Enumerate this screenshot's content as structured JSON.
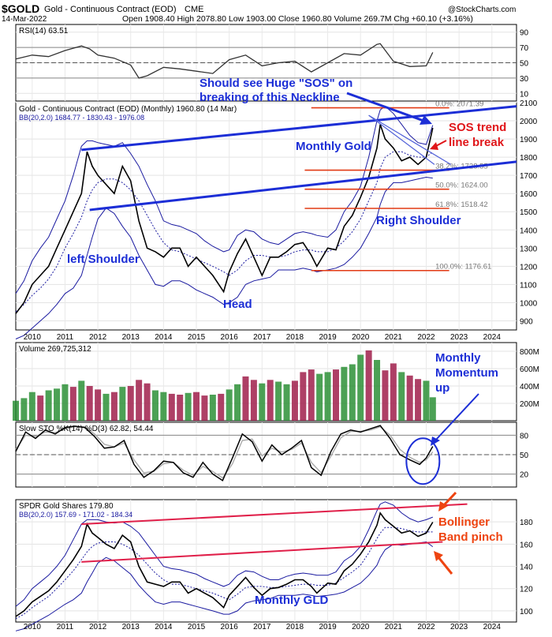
{
  "header": {
    "symbol": "$GOLD",
    "name": "Gold - Continuous Contract (EOD)",
    "exchange": "CME",
    "date": "14-Mar-2022",
    "quote": "Open 1908.40   High 2078.80   Low 1903.00   Close 1960.80   Volume 269.7M   Chg +60.10 (+3.16%)",
    "watermark": "@StockCharts.com"
  },
  "colors": {
    "price_line": "#000000",
    "bb_line": "#1a1aa0",
    "trend_blue": "#1c2ed6",
    "fib_red": "#e23a14",
    "annot_blue": "#1c2ed6",
    "annot_red": "#e0161a",
    "annot_orange": "#ee4411",
    "vol_up": "#1f8a2a",
    "vol_down": "#9a1040",
    "gld_trend": "#e0204a",
    "circle": "#1c2ed6"
  },
  "x_axis": {
    "ticks": [
      "2010",
      "2011",
      "2012",
      "2013",
      "2014",
      "2015",
      "2016",
      "2017",
      "2018",
      "2019",
      "2020",
      "2021",
      "2022",
      "2023",
      "2024"
    ]
  },
  "chart_data": [
    {
      "id": "rsi",
      "type": "line",
      "title": "RSI(14) 63.51",
      "x_range": [
        2009.5,
        2024.75
      ],
      "ylim": [
        0,
        100
      ],
      "y_ticks": [
        10,
        30,
        50,
        70,
        90
      ],
      "ref_levels": [
        70,
        30
      ],
      "x": [
        2009.5,
        2010,
        2010.5,
        2011,
        2011.5,
        2011.75,
        2012,
        2012.5,
        2013,
        2013.25,
        2013.5,
        2014,
        2014.5,
        2015,
        2015.5,
        2016,
        2016.5,
        2017,
        2017.5,
        2018,
        2018.5,
        2019,
        2019.5,
        2020,
        2020.5,
        2020.6,
        2021,
        2021.5,
        2022,
        2022.2
      ],
      "values": [
        55,
        60,
        58,
        66,
        72,
        68,
        60,
        56,
        47,
        30,
        33,
        44,
        42,
        39,
        36,
        54,
        60,
        46,
        50,
        52,
        38,
        50,
        62,
        60,
        74,
        75,
        52,
        45,
        46,
        63.5
      ]
    },
    {
      "id": "gold",
      "type": "line",
      "title": "Gold - Continuous Contract (EOD) (Monthly) 1960.80 (14 Mar)",
      "legend": "BB(20,2.0) 1684.77 - 1830.43 - 1976.08",
      "x_range": [
        2009.5,
        2024.75
      ],
      "ylim": [
        850,
        2100
      ],
      "y_ticks": [
        900,
        1000,
        1100,
        1200,
        1300,
        1400,
        1500,
        1600,
        1700,
        1800,
        1900,
        2000,
        2100
      ],
      "x": [
        2009.5,
        2009.75,
        2010,
        2010.25,
        2010.5,
        2010.75,
        2011,
        2011.25,
        2011.5,
        2011.67,
        2011.83,
        2012,
        2012.25,
        2012.5,
        2012.75,
        2013,
        2013.25,
        2013.5,
        2013.75,
        2014,
        2014.25,
        2014.5,
        2014.75,
        2015,
        2015.25,
        2015.5,
        2015.83,
        2016,
        2016.25,
        2016.5,
        2016.75,
        2017,
        2017.25,
        2017.5,
        2017.75,
        2018,
        2018.25,
        2018.5,
        2018.67,
        2019,
        2019.25,
        2019.5,
        2019.75,
        2020,
        2020.25,
        2020.5,
        2020.6,
        2020.75,
        2021,
        2021.25,
        2021.5,
        2021.75,
        2022,
        2022.2
      ],
      "values": [
        940,
        1000,
        1100,
        1150,
        1200,
        1300,
        1400,
        1500,
        1600,
        1830,
        1750,
        1700,
        1650,
        1600,
        1750,
        1670,
        1450,
        1300,
        1280,
        1250,
        1300,
        1300,
        1200,
        1250,
        1200,
        1150,
        1060,
        1170,
        1270,
        1350,
        1250,
        1150,
        1250,
        1250,
        1280,
        1320,
        1330,
        1260,
        1200,
        1300,
        1290,
        1420,
        1480,
        1580,
        1690,
        1850,
        1980,
        1900,
        1850,
        1780,
        1800,
        1760,
        1800,
        1960.8
      ],
      "bb_upper": [
        1050,
        1120,
        1230,
        1300,
        1360,
        1460,
        1560,
        1700,
        1860,
        1890,
        1890,
        1880,
        1870,
        1860,
        1880,
        1820,
        1750,
        1650,
        1560,
        1450,
        1430,
        1420,
        1400,
        1380,
        1340,
        1310,
        1280,
        1290,
        1370,
        1400,
        1390,
        1350,
        1330,
        1320,
        1350,
        1380,
        1390,
        1380,
        1370,
        1360,
        1400,
        1500,
        1560,
        1640,
        1800,
        2000,
        2060,
        2080,
        2040,
        1980,
        1920,
        1880,
        1870,
        1976
      ],
      "bb_lower": [
        800,
        820,
        860,
        900,
        940,
        990,
        1050,
        1080,
        1150,
        1260,
        1360,
        1460,
        1520,
        1490,
        1420,
        1360,
        1260,
        1180,
        1100,
        1090,
        1120,
        1120,
        1100,
        1070,
        1050,
        1030,
        990,
        1000,
        1030,
        1100,
        1120,
        1130,
        1140,
        1180,
        1180,
        1180,
        1190,
        1180,
        1170,
        1180,
        1190,
        1210,
        1250,
        1300,
        1380,
        1470,
        1540,
        1610,
        1660,
        1660,
        1670,
        1680,
        1690,
        1685
      ],
      "bb_mid": [
        950,
        990,
        1040,
        1080,
        1130,
        1200,
        1300,
        1380,
        1470,
        1560,
        1620,
        1660,
        1680,
        1680,
        1660,
        1620,
        1560,
        1480,
        1400,
        1330,
        1290,
        1280,
        1260,
        1240,
        1220,
        1200,
        1170,
        1150,
        1180,
        1230,
        1260,
        1260,
        1250,
        1250,
        1260,
        1280,
        1290,
        1290,
        1280,
        1280,
        1300,
        1340,
        1390,
        1460,
        1560,
        1660,
        1740,
        1800,
        1830,
        1830,
        1810,
        1800,
        1800,
        1830
      ],
      "trendlines": [
        {
          "from": [
            2011.5,
            1840
          ],
          "to": [
            2024.75,
            2080
          ]
        },
        {
          "from": [
            2011.75,
            1510
          ],
          "to": [
            2024.75,
            1775
          ]
        },
        {
          "from": [
            2020.25,
            2030
          ],
          "to": [
            2022.25,
            1760
          ]
        },
        {
          "from": [
            2020.25,
            2030
          ],
          "to": [
            2022.75,
            1760
          ]
        }
      ],
      "fib_lines": [
        {
          "label": "0.0%: 2071.39",
          "value": 2071.39,
          "from": 2018.5
        },
        {
          "label": "38.2%: 1728.55",
          "value": 1728.55,
          "from": 2018.3
        },
        {
          "label": "50.0%: 1624.00",
          "value": 1624.0,
          "from": 2018.3
        },
        {
          "label": "61.8%: 1518.42",
          "value": 1518.42,
          "from": 2018.3
        },
        {
          "label": "100.0%: 1176.61",
          "value": 1176.61,
          "from": 2018.5
        }
      ],
      "annotations": {
        "neckline": "Should see Huge \"SOS\" on breaking of this Neckline",
        "monthly_gold": "Monthly Gold",
        "sos_trend": "SOS trend line break",
        "right_shoulder": "Right Shoulder",
        "left_shoulder": "left Shoulder",
        "head": "Head"
      }
    },
    {
      "id": "volume",
      "type": "bar",
      "title": "Volume 269,725,312",
      "x_range": [
        2009.5,
        2024.75
      ],
      "ylim": [
        0,
        900
      ],
      "y_ticks": [
        200,
        400,
        600,
        800
      ],
      "y_tick_labels": [
        "200M",
        "400M",
        "600M",
        "800M"
      ],
      "x": [
        2009.5,
        2009.75,
        2010,
        2010.25,
        2010.5,
        2010.75,
        2011,
        2011.25,
        2011.5,
        2011.75,
        2012,
        2012.25,
        2012.5,
        2012.75,
        2013,
        2013.25,
        2013.5,
        2013.75,
        2014,
        2014.25,
        2014.5,
        2014.75,
        2015,
        2015.25,
        2015.5,
        2015.75,
        2016,
        2016.25,
        2016.5,
        2016.75,
        2017,
        2017.25,
        2017.5,
        2017.75,
        2018,
        2018.25,
        2018.5,
        2018.75,
        2019,
        2019.25,
        2019.5,
        2019.75,
        2020,
        2020.25,
        2020.5,
        2020.75,
        2021,
        2021.25,
        2021.5,
        2021.75,
        2022,
        2022.2
      ],
      "values": [
        230,
        260,
        330,
        290,
        350,
        370,
        420,
        390,
        460,
        400,
        360,
        310,
        330,
        390,
        400,
        470,
        430,
        350,
        330,
        310,
        300,
        320,
        330,
        290,
        300,
        310,
        360,
        420,
        510,
        470,
        430,
        470,
        450,
        420,
        460,
        560,
        590,
        540,
        560,
        590,
        620,
        650,
        760,
        810,
        700,
        580,
        660,
        560,
        520,
        480,
        460,
        270
      ],
      "direction": [
        1,
        1,
        1,
        0,
        1,
        1,
        1,
        0,
        1,
        0,
        0,
        1,
        0,
        1,
        0,
        0,
        0,
        1,
        1,
        0,
        0,
        1,
        0,
        0,
        1,
        0,
        1,
        1,
        0,
        0,
        1,
        0,
        1,
        1,
        0,
        0,
        0,
        1,
        1,
        0,
        1,
        1,
        1,
        0,
        1,
        0,
        0,
        1,
        0,
        0,
        1,
        1
      ],
      "annotation": "Monthly Momentum up"
    },
    {
      "id": "stochastic",
      "type": "line",
      "title": "Slow STO %K(14) %D(3) 62.82, 54.44",
      "x_range": [
        2009.5,
        2024.75
      ],
      "ylim": [
        0,
        100
      ],
      "y_ticks": [
        20,
        50,
        80
      ],
      "x": [
        2009.5,
        2009.8,
        2010.1,
        2010.4,
        2010.7,
        2011,
        2011.3,
        2011.6,
        2011.9,
        2012.2,
        2012.5,
        2012.8,
        2013.1,
        2013.4,
        2013.7,
        2014,
        2014.3,
        2014.6,
        2014.9,
        2015.2,
        2015.5,
        2015.8,
        2016.1,
        2016.4,
        2016.7,
        2017,
        2017.3,
        2017.6,
        2017.9,
        2018.2,
        2018.5,
        2018.8,
        2019.1,
        2019.4,
        2019.7,
        2020,
        2020.3,
        2020.6,
        2020.9,
        2021.2,
        2021.5,
        2021.8,
        2022,
        2022.2
      ],
      "k": [
        55,
        85,
        75,
        88,
        82,
        92,
        94,
        92,
        78,
        60,
        62,
        72,
        35,
        15,
        25,
        40,
        38,
        22,
        15,
        38,
        20,
        10,
        45,
        82,
        70,
        40,
        65,
        50,
        60,
        72,
        30,
        18,
        55,
        82,
        88,
        85,
        90,
        95,
        75,
        50,
        42,
        35,
        45,
        62.82
      ],
      "d": [
        58,
        80,
        78,
        85,
        84,
        90,
        93,
        93,
        82,
        66,
        62,
        68,
        42,
        22,
        24,
        36,
        38,
        26,
        18,
        32,
        24,
        14,
        36,
        72,
        74,
        48,
        60,
        54,
        58,
        68,
        38,
        22,
        48,
        76,
        86,
        86,
        88,
        93,
        80,
        58,
        46,
        38,
        42,
        54.44
      ],
      "annotation_circle": {
        "x": 2021.9,
        "y": 40
      }
    },
    {
      "id": "gld",
      "type": "line",
      "title": "SPDR Gold Shares 179.80",
      "legend": "BB(20,2.0) 157.69 - 171.02 - 184.34",
      "x_range": [
        2009.5,
        2024.75
      ],
      "ylim": [
        90,
        200
      ],
      "y_ticks": [
        100,
        120,
        140,
        160,
        180
      ],
      "x": [
        2009.5,
        2009.75,
        2010,
        2010.25,
        2010.5,
        2010.75,
        2011,
        2011.25,
        2011.5,
        2011.67,
        2011.83,
        2012,
        2012.25,
        2012.5,
        2012.75,
        2013,
        2013.25,
        2013.5,
        2013.75,
        2014,
        2014.25,
        2014.5,
        2014.75,
        2015,
        2015.25,
        2015.5,
        2015.83,
        2016,
        2016.25,
        2016.5,
        2016.75,
        2017,
        2017.25,
        2017.5,
        2017.75,
        2018,
        2018.25,
        2018.5,
        2018.67,
        2019,
        2019.25,
        2019.5,
        2019.75,
        2020,
        2020.25,
        2020.5,
        2020.6,
        2020.75,
        2021,
        2021.25,
        2021.5,
        2021.75,
        2022,
        2022.2
      ],
      "values": [
        95,
        100,
        108,
        113,
        118,
        126,
        136,
        146,
        158,
        178,
        170,
        166,
        160,
        156,
        168,
        162,
        140,
        126,
        124,
        122,
        126,
        126,
        116,
        120,
        116,
        112,
        103,
        114,
        122,
        130,
        121,
        114,
        120,
        121,
        124,
        128,
        128,
        122,
        116,
        125,
        124,
        136,
        142,
        151,
        162,
        177,
        188,
        182,
        176,
        170,
        172,
        167,
        170,
        179.8
      ],
      "bb_upper": [
        104,
        110,
        120,
        126,
        132,
        140,
        150,
        164,
        178,
        182,
        182,
        182,
        180,
        179,
        180,
        176,
        170,
        160,
        150,
        140,
        138,
        137,
        135,
        133,
        129,
        126,
        122,
        124,
        132,
        136,
        135,
        131,
        128,
        128,
        131,
        133,
        134,
        133,
        132,
        132,
        135,
        145,
        150,
        158,
        173,
        190,
        196,
        198,
        195,
        188,
        183,
        180,
        182,
        184.3
      ],
      "bb_lower": [
        82,
        84,
        88,
        92,
        96,
        101,
        106,
        110,
        116,
        126,
        134,
        143,
        148,
        145,
        139,
        133,
        123,
        115,
        108,
        106,
        108,
        108,
        106,
        104,
        102,
        100,
        97,
        97,
        100,
        107,
        109,
        110,
        111,
        114,
        114,
        114,
        115,
        114,
        113,
        114,
        115,
        117,
        121,
        125,
        132,
        141,
        148,
        155,
        160,
        159,
        160,
        161,
        162,
        157.7
      ],
      "bb_mid": [
        93,
        97,
        103,
        108,
        113,
        120,
        128,
        136,
        146,
        153,
        158,
        161,
        162,
        162,
        160,
        156,
        150,
        142,
        134,
        128,
        124,
        124,
        122,
        120,
        118,
        116,
        112,
        110,
        115,
        121,
        122,
        122,
        121,
        121,
        122,
        123,
        124,
        124,
        123,
        123,
        125,
        130,
        135,
        141,
        152,
        165,
        170,
        175,
        175,
        174,
        172,
        171,
        171,
        171
      ],
      "trendlines": [
        {
          "from": [
            2011.5,
            178
          ],
          "to": [
            2023.25,
            196
          ]
        },
        {
          "from": [
            2011.5,
            144
          ],
          "to": [
            2022.5,
            162
          ]
        }
      ],
      "annotations": {
        "bollinger": "Bollinger Band pinch",
        "monthly_gld": "Monthly GLD"
      }
    }
  ]
}
